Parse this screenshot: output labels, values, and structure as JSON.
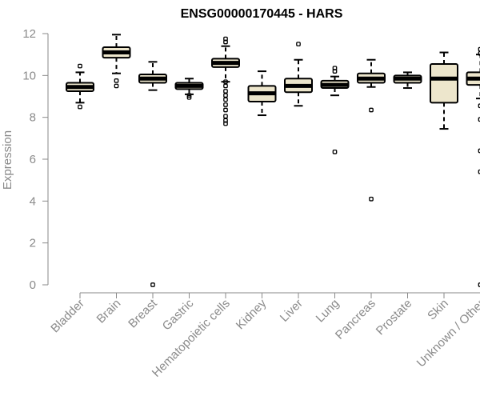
{
  "chart_data": {
    "type": "box",
    "title": "ENSG00000170445 - HARS",
    "ylabel": "Expression",
    "xlabel": "",
    "ylim": [
      0,
      12
    ],
    "yticks": [
      0,
      2,
      4,
      6,
      8,
      10,
      12
    ],
    "grid": false,
    "colors": {
      "box_fill": "#ede6cc",
      "stroke": "#000000",
      "axis": "#8a8a8a"
    },
    "categories": [
      "Bladder",
      "Brain",
      "Breast",
      "Gastric",
      "Hematopoietic cells",
      "Kidney",
      "Liver",
      "Lung",
      "Pancreas",
      "Prostate",
      "Skin",
      "Unknown / Other"
    ],
    "boxes": [
      {
        "min": 8.7,
        "q1": 9.25,
        "median": 9.45,
        "q3": 9.65,
        "max": 10.15,
        "outliers": [
          10.45,
          8.5
        ]
      },
      {
        "min": 10.1,
        "q1": 10.85,
        "median": 11.1,
        "q3": 11.35,
        "max": 11.95,
        "outliers": [
          9.75,
          9.5
        ]
      },
      {
        "min": 9.3,
        "q1": 9.65,
        "median": 9.85,
        "q3": 10.05,
        "max": 10.65,
        "outliers": [
          0.0
        ]
      },
      {
        "min": 9.1,
        "q1": 9.35,
        "median": 9.5,
        "q3": 9.65,
        "max": 9.85,
        "outliers": [
          9.05,
          8.95
        ]
      },
      {
        "min": 9.7,
        "q1": 10.4,
        "median": 10.6,
        "q3": 10.8,
        "max": 11.4,
        "outliers": [
          11.75,
          11.6,
          9.7,
          9.5,
          9.25,
          9.05,
          8.85,
          8.6,
          8.35,
          8.05,
          7.85,
          7.7
        ]
      },
      {
        "min": 8.1,
        "q1": 8.75,
        "median": 9.15,
        "q3": 9.5,
        "max": 10.2,
        "outliers": []
      },
      {
        "min": 8.55,
        "q1": 9.2,
        "median": 9.5,
        "q3": 9.85,
        "max": 10.75,
        "outliers": [
          11.5
        ]
      },
      {
        "min": 9.05,
        "q1": 9.4,
        "median": 9.55,
        "q3": 9.75,
        "max": 9.95,
        "outliers": [
          10.35,
          10.2,
          6.35
        ]
      },
      {
        "min": 9.45,
        "q1": 9.65,
        "median": 9.85,
        "q3": 10.1,
        "max": 10.75,
        "outliers": [
          8.35,
          4.1
        ]
      },
      {
        "min": 9.4,
        "q1": 9.65,
        "median": 9.85,
        "q3": 10.0,
        "max": 10.15,
        "outliers": []
      },
      {
        "min": 7.45,
        "q1": 8.7,
        "median": 9.85,
        "q3": 10.55,
        "max": 11.1,
        "outliers": []
      },
      {
        "min": 8.9,
        "q1": 9.55,
        "median": 9.85,
        "q3": 10.15,
        "max": 11.0,
        "outliers": [
          11.25,
          11.05,
          8.55,
          7.9,
          6.4,
          5.4,
          0.0
        ]
      }
    ]
  }
}
